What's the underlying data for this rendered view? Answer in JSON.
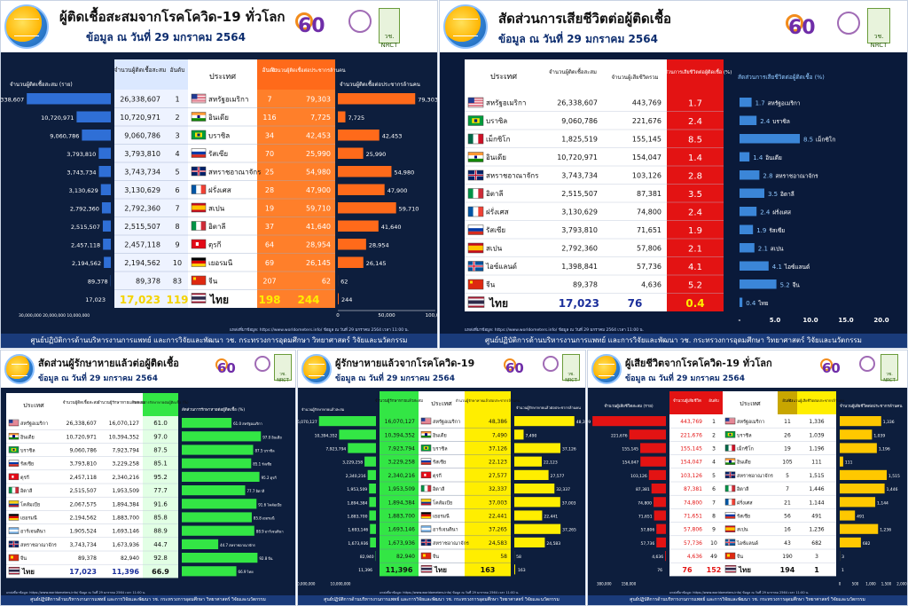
{
  "date_line": "ข้อมูล ณ วันที่ 29 มกราคม 2564",
  "footer_main": "ศูนย์ปฏิบัติการด้านบริหารงานการแพทย์ และการวิจัยและพัฒนา วช.  กระทรวงการอุดมศึกษา วิทยาศาสตร์ วิจัยและนวัตกรรม",
  "source": "แหล่งที่มาข้อมูล: https://www.worldometers.info/ ข้อมูล ณ วันที่ 29 มกราคม 2564 เวลา 11:00 น.",
  "logo": {
    "sixty": "60",
    "seal_text": "วช. NRCT"
  },
  "colors": {
    "navy": "#0d1e3d",
    "orange": "#ff6a1a",
    "blue": "#2f6fd6",
    "green": "#33e645",
    "yellow": "#ffee00",
    "red": "#e31313"
  },
  "panels": {
    "cases": {
      "title": "ผู้ติดเชื้อสะสมจากโรคโควิด-19 ทั่วโลก",
      "col_cases": "จำนวนผู้ติดเชื้อสะสม",
      "col_rank": "อันดับ",
      "col_country": "ประเทศ",
      "col_rank2": "อันดับ",
      "col_permillion": "จำนวนผู้ติดเชื้อต่อประชากรล้านคน",
      "left_label": "จำนวนผู้ติดเชื้อสะสม (ราย)",
      "right_label": "จำนวนผู้ติดเชื้อต่อประชากรล้านคน",
      "left_axis": "30,000,000 20,000,000 10,000,000",
      "right_axis": [
        "0",
        "50,000",
        "100,000"
      ],
      "rows": [
        {
          "country": "สหรัฐอเมริกา",
          "cases": "26,338,607",
          "rank": "1",
          "rank2": "7",
          "permillion": "79,303",
          "flag": "us"
        },
        {
          "country": "อินเดีย",
          "cases": "10,720,971",
          "rank": "2",
          "rank2": "116",
          "permillion": "7,725",
          "flag": "in"
        },
        {
          "country": "บราซิล",
          "cases": "9,060,786",
          "rank": "3",
          "rank2": "34",
          "permillion": "42,453",
          "flag": "br"
        },
        {
          "country": "รัสเซีย",
          "cases": "3,793,810",
          "rank": "4",
          "rank2": "70",
          "permillion": "25,990",
          "flag": "ru"
        },
        {
          "country": "สหราชอาณาจักร",
          "cases": "3,743,734",
          "rank": "5",
          "rank2": "25",
          "permillion": "54,980",
          "flag": "gb"
        },
        {
          "country": "ฝรั่งเศส",
          "cases": "3,130,629",
          "rank": "6",
          "rank2": "28",
          "permillion": "47,900",
          "flag": "fr"
        },
        {
          "country": "สเปน",
          "cases": "2,792,360",
          "rank": "7",
          "rank2": "19",
          "permillion": "59,710",
          "flag": "es"
        },
        {
          "country": "อิตาลี",
          "cases": "2,515,507",
          "rank": "8",
          "rank2": "37",
          "permillion": "41,640",
          "flag": "it"
        },
        {
          "country": "ตุรกี",
          "cases": "2,457,118",
          "rank": "9",
          "rank2": "64",
          "permillion": "28,954",
          "flag": "tr"
        },
        {
          "country": "เยอรมนี",
          "cases": "2,194,562",
          "rank": "10",
          "rank2": "69",
          "permillion": "26,145",
          "flag": "de"
        },
        {
          "country": "จีน",
          "cases": "89,378",
          "rank": "83",
          "rank2": "207",
          "permillion": "62",
          "flag": "cn"
        }
      ],
      "thai": {
        "country": "ไทย",
        "cases": "17,023",
        "rank": "119",
        "rank2": "198",
        "permillion": "244"
      }
    },
    "cfr": {
      "title": "สัดส่วนการเสียชีวิตต่อผู้ติดเชื้อ",
      "col_country": "ประเทศ",
      "col_cases": "จำนวนผู้ติดเชื้อสะสม",
      "col_deaths": "จำนวนผู้เสียชีวิตรวม",
      "col_ratio": "สัดส่วนการเสียชีวิตต่อผู้ติดเชื้อ (%)",
      "chart_label": "สัดส่วนการเสียชีวิตต่อผู้ติดเชื้อ (%)",
      "axis": [
        "-",
        "5.0",
        "10.0",
        "15.0",
        "20.0"
      ],
      "rows": [
        {
          "country": "สหรัฐอเมริกา",
          "cases": "26,338,607",
          "deaths": "443,769",
          "ratio": "1.7",
          "flag": "us"
        },
        {
          "country": "บราซิล",
          "cases": "9,060,786",
          "deaths": "221,676",
          "ratio": "2.4",
          "flag": "br"
        },
        {
          "country": "เม็กซิโก",
          "cases": "1,825,519",
          "deaths": "155,145",
          "ratio": "8.5",
          "flag": "mx"
        },
        {
          "country": "อินเดีย",
          "cases": "10,720,971",
          "deaths": "154,047",
          "ratio": "1.4",
          "flag": "in"
        },
        {
          "country": "สหราชอาณาจักร",
          "cases": "3,743,734",
          "deaths": "103,126",
          "ratio": "2.8",
          "flag": "gb"
        },
        {
          "country": "อิตาลี",
          "cases": "2,515,507",
          "deaths": "87,381",
          "ratio": "3.5",
          "flag": "it"
        },
        {
          "country": "ฝรั่งเศส",
          "cases": "3,130,629",
          "deaths": "74,800",
          "ratio": "2.4",
          "flag": "fr"
        },
        {
          "country": "รัสเซีย",
          "cases": "3,793,810",
          "deaths": "71,651",
          "ratio": "1.9",
          "flag": "ru"
        },
        {
          "country": "สเปน",
          "cases": "2,792,360",
          "deaths": "57,806",
          "ratio": "2.1",
          "flag": "es"
        },
        {
          "country": "ไอซ์แลนด์",
          "cases": "1,398,841",
          "deaths": "57,736",
          "ratio": "4.1",
          "flag": "is"
        },
        {
          "country": "จีน",
          "cases": "89,378",
          "deaths": "4,636",
          "ratio": "5.2",
          "flag": "cn"
        }
      ],
      "thai": {
        "country": "ไทย",
        "cases": "17,023",
        "deaths": "76",
        "ratio": "0.4"
      }
    },
    "recov_ratio": {
      "title": "สัดส่วนผู้รักษาหายแล้วต่อผู้ติดเชื้อ",
      "col_country": "ประเทศ",
      "col_cases": "จำนวนผู้ติดเชื้อสะสม",
      "col_recovered": "จำนวนผู้รักษาหายแล้วสะสม",
      "col_ratio": "สัดส่วนการรักษาหายต่อผู้ติดเชื้อ (%)",
      "chart_label": "สัดส่วนการรักษาหายต่อผู้ติดเชื้อ (%)",
      "rows": [
        {
          "country": "สหรัฐอเมริกา",
          "cases": "26,338,607",
          "recovered": "16,070,127",
          "ratio": "61.0",
          "flag": "us"
        },
        {
          "country": "อินเดีย",
          "cases": "10,720,971",
          "recovered": "10,394,352",
          "ratio": "97.0",
          "flag": "in"
        },
        {
          "country": "บราซิล",
          "cases": "9,060,786",
          "recovered": "7,923,794",
          "ratio": "87.5",
          "flag": "br"
        },
        {
          "country": "รัสเซีย",
          "cases": "3,793,810",
          "recovered": "3,229,258",
          "ratio": "85.1",
          "flag": "ru"
        },
        {
          "country": "ตุรกี",
          "cases": "2,457,118",
          "recovered": "2,340,216",
          "ratio": "95.2",
          "flag": "tr"
        },
        {
          "country": "อิตาลี",
          "cases": "2,515,507",
          "recovered": "1,953,509",
          "ratio": "77.7",
          "flag": "it"
        },
        {
          "country": "โคลัมเบีย",
          "cases": "2,067,575",
          "recovered": "1,894,384",
          "ratio": "91.6",
          "flag": "co"
        },
        {
          "country": "เยอรมนี",
          "cases": "2,194,562",
          "recovered": "1,883,700",
          "ratio": "85.8",
          "flag": "de"
        },
        {
          "country": "อาร์เจนตินา",
          "cases": "1,905,524",
          "recovered": "1,693,146",
          "ratio": "88.9",
          "flag": "ar"
        },
        {
          "country": "สหราชอาณาจักร",
          "cases": "3,743,734",
          "recovered": "1,673,936",
          "ratio": "44.7",
          "flag": "gb"
        },
        {
          "country": "จีน",
          "cases": "89,378",
          "recovered": "82,940",
          "ratio": "92.8",
          "flag": "cn"
        }
      ],
      "thai": {
        "country": "ไทย",
        "cases": "17,023",
        "recovered": "11,396",
        "ratio": "66.9"
      }
    },
    "recovered": {
      "title": "ผู้รักษาหายแล้วจากโรคโควิด-19",
      "col_recovered": "จำนวนผู้รักษาหายแล้วสะสม",
      "col_country": "ประเทศ",
      "col_permillion": "จำนวนผู้รักษาหายแล้วต่อประชากรล้านคน",
      "left_label": "จำนวนผู้รักษาหายแล้วสะสม",
      "right_label": "จำนวนผู้รักษาหายแล้วต่อประชากรล้านคน",
      "left_axis": [
        "20,000,000",
        "10,000,000"
      ],
      "rows": [
        {
          "country": "สหรัฐอเมริกา",
          "recovered": "16,070,127",
          "permillion": "48,386",
          "flag": "us"
        },
        {
          "country": "อินเดีย",
          "recovered": "10,394,352",
          "permillion": "7,490",
          "flag": "in"
        },
        {
          "country": "บราซิล",
          "recovered": "7,923,794",
          "permillion": "37,126",
          "flag": "br"
        },
        {
          "country": "รัสเซีย",
          "recovered": "3,229,258",
          "permillion": "22,123",
          "flag": "ru"
        },
        {
          "country": "ตุรกี",
          "recovered": "2,340,216",
          "permillion": "27,577",
          "flag": "tr"
        },
        {
          "country": "อิตาลี",
          "recovered": "1,953,509",
          "permillion": "32,337",
          "flag": "it"
        },
        {
          "country": "โคลัมเบีย",
          "recovered": "1,894,384",
          "permillion": "37,003",
          "flag": "co"
        },
        {
          "country": "เยอรมนี",
          "recovered": "1,883,700",
          "permillion": "22,441",
          "flag": "de"
        },
        {
          "country": "อาร์เจนตินา",
          "recovered": "1,693,146",
          "permillion": "37,265",
          "flag": "ar"
        },
        {
          "country": "สหราชอาณาจักร",
          "recovered": "1,673,936",
          "permillion": "24,583",
          "flag": "gb"
        },
        {
          "country": "จีน",
          "recovered": "82,940",
          "permillion": "58",
          "flag": "cn"
        }
      ],
      "thai": {
        "country": "ไทย",
        "recovered": "11,396",
        "permillion": "163"
      }
    },
    "deaths": {
      "title": "ผู้เสียชีวิตจากโรคโควิด-19 ทั่วโลก",
      "col_deaths": "จำนวนผู้เสียชีวิต",
      "col_rank": "อันดับ",
      "col_country": "ประเทศ",
      "col_rank2": "อันดับ",
      "col_permillion": "จำนวนผู้เสียชีวิตต่อประชากรล้านคน",
      "left_label": "จำนวนผู้เสียชีวิตสะสม (ราย)",
      "right_label": "จำนวนผู้เสียชีวิตต่อประชากรล้านคน",
      "left_axis": [
        "380,000",
        "158,000"
      ],
      "right_axis": [
        "0",
        "500",
        "1,000",
        "1,500",
        "2,000"
      ],
      "rows": [
        {
          "country": "สหรัฐอเมริกา",
          "deaths": "443,769",
          "rank": "1",
          "rank2": "11",
          "permillion": "1,336",
          "flag": "us"
        },
        {
          "country": "บราซิล",
          "deaths": "221,676",
          "rank": "2",
          "rank2": "26",
          "permillion": "1,039",
          "flag": "br"
        },
        {
          "country": "เม็กซิโก",
          "deaths": "155,145",
          "rank": "3",
          "rank2": "19",
          "permillion": "1,196",
          "flag": "mx"
        },
        {
          "country": "อินเดีย",
          "deaths": "154,047",
          "rank": "4",
          "rank2": "105",
          "permillion": "111",
          "flag": "in"
        },
        {
          "country": "สหราชอาณาจักร",
          "deaths": "103,126",
          "rank": "5",
          "rank2": "5",
          "permillion": "1,515",
          "flag": "gb"
        },
        {
          "country": "อิตาลี",
          "deaths": "87,381",
          "rank": "6",
          "rank2": "7",
          "permillion": "1,446",
          "flag": "it"
        },
        {
          "country": "ฝรั่งเศส",
          "deaths": "74,800",
          "rank": "7",
          "rank2": "21",
          "permillion": "1,144",
          "flag": "fr"
        },
        {
          "country": "รัสเซีย",
          "deaths": "71,651",
          "rank": "8",
          "rank2": "56",
          "permillion": "491",
          "flag": "ru"
        },
        {
          "country": "สเปน",
          "deaths": "57,806",
          "rank": "9",
          "rank2": "16",
          "permillion": "1,236",
          "flag": "es"
        },
        {
          "country": "ไอซ์แลนด์",
          "deaths": "57,736",
          "rank": "10",
          "rank2": "43",
          "permillion": "682",
          "flag": "is"
        },
        {
          "country": "จีน",
          "deaths": "4,636",
          "rank": "49",
          "rank2": "190",
          "permillion": "3",
          "flag": "cn"
        }
      ],
      "thai": {
        "country": "ไทย",
        "deaths": "76",
        "rank": "152",
        "rank2": "194",
        "permillion": "1"
      }
    }
  },
  "chart_data": [
    {
      "type": "bar",
      "title": "ผู้ติดเชื้อสะสมจากโรคโควิด-19 ทั่วโลก",
      "categories": [
        "สหรัฐอเมริกา",
        "อินเดีย",
        "บราซิล",
        "รัสเซีย",
        "สหราชอาณาจักร",
        "ฝรั่งเศส",
        "สเปน",
        "อิตาลี",
        "ตุรกี",
        "เยอรมนี",
        "จีน",
        "ไทย"
      ],
      "series": [
        {
          "name": "จำนวนผู้ติดเชื้อสะสม (ราย)",
          "values": [
            26338607,
            10720971,
            9060786,
            3793810,
            3743734,
            3130629,
            2792360,
            2515507,
            2457118,
            2194562,
            89378,
            17023
          ]
        },
        {
          "name": "จำนวนผู้ติดเชื้อต่อประชากรล้านคน",
          "values": [
            79303,
            7725,
            42453,
            25990,
            54980,
            47900,
            59710,
            41640,
            28954,
            26145,
            62,
            244
          ]
        }
      ]
    },
    {
      "type": "bar",
      "title": "สัดส่วนการเสียชีวิตต่อผู้ติดเชื้อ",
      "categories": [
        "สหรัฐอเมริกา",
        "บราซิล",
        "เม็กซิโก",
        "อินเดีย",
        "สหราชอาณาจักร",
        "อิตาลี",
        "ฝรั่งเศส",
        "รัสเซีย",
        "สเปน",
        "ไอซ์แลนด์",
        "จีน",
        "ไทย"
      ],
      "series": [
        {
          "name": "สัดส่วนการเสียชีวิตต่อผู้ติดเชื้อ (%)",
          "values": [
            1.7,
            2.4,
            8.5,
            1.4,
            2.8,
            3.5,
            2.4,
            1.9,
            2.1,
            4.1,
            5.2,
            0.4
          ]
        }
      ],
      "xlim": [
        0,
        20
      ]
    },
    {
      "type": "bar",
      "title": "สัดส่วนผู้รักษาหายแล้วต่อผู้ติดเชื้อ",
      "categories": [
        "สหรัฐอเมริกา",
        "อินเดีย",
        "บราซิล",
        "รัสเซีย",
        "ตุรกี",
        "อิตาลี",
        "โคลัมเบีย",
        "เยอรมนี",
        "อาร์เจนตินา",
        "สหราชอาณาจักร",
        "จีน",
        "ไทย"
      ],
      "series": [
        {
          "name": "สัดส่วนการรักษาหายต่อผู้ติดเชื้อ (%)",
          "values": [
            61.0,
            97.0,
            87.5,
            85.1,
            95.2,
            77.7,
            91.6,
            85.8,
            88.9,
            44.7,
            92.8,
            66.9
          ]
        }
      ]
    },
    {
      "type": "bar",
      "title": "ผู้รักษาหายแล้วจากโรคโควิด-19",
      "categories": [
        "สหรัฐอเมริกา",
        "อินเดีย",
        "บราซิล",
        "รัสเซีย",
        "ตุรกี",
        "อิตาลี",
        "โคลัมเบีย",
        "เยอรมนี",
        "อาร์เจนตินา",
        "สหราชอาณาจักร",
        "จีน",
        "ไทย"
      ],
      "series": [
        {
          "name": "จำนวนผู้รักษาหายแล้วสะสม",
          "values": [
            16070127,
            10394352,
            7923794,
            3229258,
            2340216,
            1953509,
            1894384,
            1883700,
            1693146,
            1673936,
            82940,
            11396
          ]
        },
        {
          "name": "จำนวนผู้รักษาหายแล้วต่อประชากรล้านคน",
          "values": [
            48386,
            7490,
            37126,
            22123,
            27577,
            32337,
            37003,
            22441,
            37265,
            24583,
            58,
            163
          ]
        }
      ]
    },
    {
      "type": "bar",
      "title": "ผู้เสียชีวิตจากโรคโควิด-19 ทั่วโลก",
      "categories": [
        "สหรัฐอเมริกา",
        "บราซิล",
        "เม็กซิโก",
        "อินเดีย",
        "สหราชอาณาจักร",
        "อิตาลี",
        "ฝรั่งเศส",
        "รัสเซีย",
        "สเปน",
        "ไอซ์แลนด์",
        "จีน",
        "ไทย"
      ],
      "series": [
        {
          "name": "จำนวนผู้เสียชีวิตสะสม (ราย)",
          "values": [
            443769,
            221676,
            155145,
            154047,
            103126,
            87381,
            74800,
            71651,
            57806,
            57736,
            4636,
            76
          ]
        },
        {
          "name": "จำนวนผู้เสียชีวิตต่อประชากรล้านคน",
          "values": [
            1336,
            1039,
            1196,
            111,
            1515,
            1446,
            1144,
            491,
            1236,
            682,
            3,
            1
          ]
        }
      ]
    }
  ]
}
